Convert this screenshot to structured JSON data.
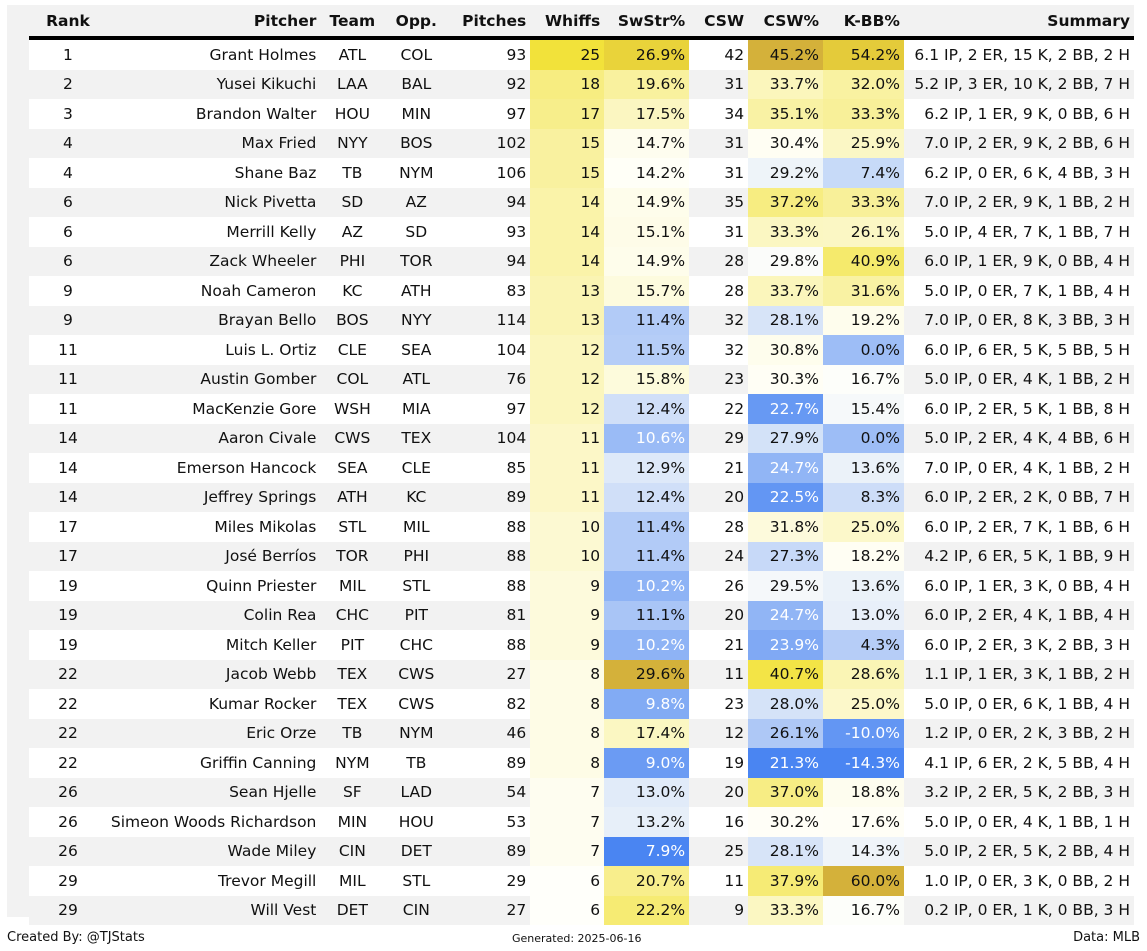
{
  "columns": [
    "Rank",
    "Pitcher",
    "Team",
    "Opp.",
    "Pitches",
    "Whiffs",
    "SwStr%",
    "CSW",
    "CSW%",
    "K-BB%",
    "Summary"
  ],
  "rows": [
    {
      "rank": "1",
      "pitcher": "Grant Holmes",
      "team": "ATL",
      "opp": "COL",
      "pitches": "93",
      "whiffs": "25",
      "swstr": "26.9%",
      "csw": "42",
      "cswp": "45.2%",
      "kbb": "54.2%",
      "summary": "6.1 IP, 2 ER, 15 K, 2 BB, 2 H"
    },
    {
      "rank": "2",
      "pitcher": "Yusei Kikuchi",
      "team": "LAA",
      "opp": "BAL",
      "pitches": "92",
      "whiffs": "18",
      "swstr": "19.6%",
      "csw": "31",
      "cswp": "33.7%",
      "kbb": "32.0%",
      "summary": "5.2 IP, 3 ER, 10 K, 2 BB, 7 H"
    },
    {
      "rank": "3",
      "pitcher": "Brandon Walter",
      "team": "HOU",
      "opp": "MIN",
      "pitches": "97",
      "whiffs": "17",
      "swstr": "17.5%",
      "csw": "34",
      "cswp": "35.1%",
      "kbb": "33.3%",
      "summary": "6.2 IP, 1 ER, 9 K, 0 BB, 6 H"
    },
    {
      "rank": "4",
      "pitcher": "Max Fried",
      "team": "NYY",
      "opp": "BOS",
      "pitches": "102",
      "whiffs": "15",
      "swstr": "14.7%",
      "csw": "31",
      "cswp": "30.4%",
      "kbb": "25.9%",
      "summary": "7.0 IP, 2 ER, 9 K, 2 BB, 6 H"
    },
    {
      "rank": "4",
      "pitcher": "Shane Baz",
      "team": "TB",
      "opp": "NYM",
      "pitches": "106",
      "whiffs": "15",
      "swstr": "14.2%",
      "csw": "31",
      "cswp": "29.2%",
      "kbb": "7.4%",
      "summary": "6.2 IP, 0 ER, 6 K, 4 BB, 3 H"
    },
    {
      "rank": "6",
      "pitcher": "Nick Pivetta",
      "team": "SD",
      "opp": "AZ",
      "pitches": "94",
      "whiffs": "14",
      "swstr": "14.9%",
      "csw": "35",
      "cswp": "37.2%",
      "kbb": "33.3%",
      "summary": "7.0 IP, 2 ER, 9 K, 1 BB, 2 H"
    },
    {
      "rank": "6",
      "pitcher": "Merrill Kelly",
      "team": "AZ",
      "opp": "SD",
      "pitches": "93",
      "whiffs": "14",
      "swstr": "15.1%",
      "csw": "31",
      "cswp": "33.3%",
      "kbb": "26.1%",
      "summary": "5.0 IP, 4 ER, 7 K, 1 BB, 7 H"
    },
    {
      "rank": "6",
      "pitcher": "Zack Wheeler",
      "team": "PHI",
      "opp": "TOR",
      "pitches": "94",
      "whiffs": "14",
      "swstr": "14.9%",
      "csw": "28",
      "cswp": "29.8%",
      "kbb": "40.9%",
      "summary": "6.0 IP, 1 ER, 9 K, 0 BB, 4 H"
    },
    {
      "rank": "9",
      "pitcher": "Noah Cameron",
      "team": "KC",
      "opp": "ATH",
      "pitches": "83",
      "whiffs": "13",
      "swstr": "15.7%",
      "csw": "28",
      "cswp": "33.7%",
      "kbb": "31.6%",
      "summary": "5.0 IP, 0 ER, 7 K, 1 BB, 4 H"
    },
    {
      "rank": "9",
      "pitcher": "Brayan Bello",
      "team": "BOS",
      "opp": "NYY",
      "pitches": "114",
      "whiffs": "13",
      "swstr": "11.4%",
      "csw": "32",
      "cswp": "28.1%",
      "kbb": "19.2%",
      "summary": "7.0 IP, 0 ER, 8 K, 3 BB, 3 H"
    },
    {
      "rank": "11",
      "pitcher": "Luis L. Ortiz",
      "team": "CLE",
      "opp": "SEA",
      "pitches": "104",
      "whiffs": "12",
      "swstr": "11.5%",
      "csw": "32",
      "cswp": "30.8%",
      "kbb": "0.0%",
      "summary": "6.0 IP, 6 ER, 5 K, 5 BB, 5 H"
    },
    {
      "rank": "11",
      "pitcher": "Austin Gomber",
      "team": "COL",
      "opp": "ATL",
      "pitches": "76",
      "whiffs": "12",
      "swstr": "15.8%",
      "csw": "23",
      "cswp": "30.3%",
      "kbb": "16.7%",
      "summary": "5.0 IP, 0 ER, 4 K, 1 BB, 2 H"
    },
    {
      "rank": "11",
      "pitcher": "MacKenzie Gore",
      "team": "WSH",
      "opp": "MIA",
      "pitches": "97",
      "whiffs": "12",
      "swstr": "12.4%",
      "csw": "22",
      "cswp": "22.7%",
      "kbb": "15.4%",
      "summary": "6.0 IP, 2 ER, 5 K, 1 BB, 8 H"
    },
    {
      "rank": "14",
      "pitcher": "Aaron Civale",
      "team": "CWS",
      "opp": "TEX",
      "pitches": "104",
      "whiffs": "11",
      "swstr": "10.6%",
      "csw": "29",
      "cswp": "27.9%",
      "kbb": "0.0%",
      "summary": "5.0 IP, 2 ER, 4 K, 4 BB, 6 H"
    },
    {
      "rank": "14",
      "pitcher": "Emerson Hancock",
      "team": "SEA",
      "opp": "CLE",
      "pitches": "85",
      "whiffs": "11",
      "swstr": "12.9%",
      "csw": "21",
      "cswp": "24.7%",
      "kbb": "13.6%",
      "summary": "7.0 IP, 0 ER, 4 K, 1 BB, 2 H"
    },
    {
      "rank": "14",
      "pitcher": "Jeffrey Springs",
      "team": "ATH",
      "opp": "KC",
      "pitches": "89",
      "whiffs": "11",
      "swstr": "12.4%",
      "csw": "20",
      "cswp": "22.5%",
      "kbb": "8.3%",
      "summary": "6.0 IP, 2 ER, 2 K, 0 BB, 7 H"
    },
    {
      "rank": "17",
      "pitcher": "Miles Mikolas",
      "team": "STL",
      "opp": "MIL",
      "pitches": "88",
      "whiffs": "10",
      "swstr": "11.4%",
      "csw": "28",
      "cswp": "31.8%",
      "kbb": "25.0%",
      "summary": "6.0 IP, 2 ER, 7 K, 1 BB, 6 H"
    },
    {
      "rank": "17",
      "pitcher": "José Berríos",
      "team": "TOR",
      "opp": "PHI",
      "pitches": "88",
      "whiffs": "10",
      "swstr": "11.4%",
      "csw": "24",
      "cswp": "27.3%",
      "kbb": "18.2%",
      "summary": "4.2 IP, 6 ER, 5 K, 1 BB, 9 H"
    },
    {
      "rank": "19",
      "pitcher": "Quinn Priester",
      "team": "MIL",
      "opp": "STL",
      "pitches": "88",
      "whiffs": "9",
      "swstr": "10.2%",
      "csw": "26",
      "cswp": "29.5%",
      "kbb": "13.6%",
      "summary": "6.0 IP, 1 ER, 3 K, 0 BB, 4 H"
    },
    {
      "rank": "19",
      "pitcher": "Colin Rea",
      "team": "CHC",
      "opp": "PIT",
      "pitches": "81",
      "whiffs": "9",
      "swstr": "11.1%",
      "csw": "20",
      "cswp": "24.7%",
      "kbb": "13.0%",
      "summary": "6.0 IP, 2 ER, 4 K, 1 BB, 4 H"
    },
    {
      "rank": "19",
      "pitcher": "Mitch Keller",
      "team": "PIT",
      "opp": "CHC",
      "pitches": "88",
      "whiffs": "9",
      "swstr": "10.2%",
      "csw": "21",
      "cswp": "23.9%",
      "kbb": "4.3%",
      "summary": "6.0 IP, 2 ER, 3 K, 2 BB, 3 H"
    },
    {
      "rank": "22",
      "pitcher": "Jacob Webb",
      "team": "TEX",
      "opp": "CWS",
      "pitches": "27",
      "whiffs": "8",
      "swstr": "29.6%",
      "csw": "11",
      "cswp": "40.7%",
      "kbb": "28.6%",
      "summary": "1.1 IP, 1 ER, 3 K, 1 BB, 2 H"
    },
    {
      "rank": "22",
      "pitcher": "Kumar Rocker",
      "team": "TEX",
      "opp": "CWS",
      "pitches": "82",
      "whiffs": "8",
      "swstr": "9.8%",
      "csw": "23",
      "cswp": "28.0%",
      "kbb": "25.0%",
      "summary": "5.0 IP, 0 ER, 6 K, 1 BB, 4 H"
    },
    {
      "rank": "22",
      "pitcher": "Eric Orze",
      "team": "TB",
      "opp": "NYM",
      "pitches": "46",
      "whiffs": "8",
      "swstr": "17.4%",
      "csw": "12",
      "cswp": "26.1%",
      "kbb": "-10.0%",
      "summary": "1.2 IP, 0 ER, 2 K, 3 BB, 2 H"
    },
    {
      "rank": "22",
      "pitcher": "Griffin Canning",
      "team": "NYM",
      "opp": "TB",
      "pitches": "89",
      "whiffs": "8",
      "swstr": "9.0%",
      "csw": "19",
      "cswp": "21.3%",
      "kbb": "-14.3%",
      "summary": "4.1 IP, 6 ER, 2 K, 5 BB, 4 H"
    },
    {
      "rank": "26",
      "pitcher": "Sean Hjelle",
      "team": "SF",
      "opp": "LAD",
      "pitches": "54",
      "whiffs": "7",
      "swstr": "13.0%",
      "csw": "20",
      "cswp": "37.0%",
      "kbb": "18.8%",
      "summary": "3.2 IP, 2 ER, 5 K, 2 BB, 3 H"
    },
    {
      "rank": "26",
      "pitcher": "Simeon Woods Richardson",
      "team": "MIN",
      "opp": "HOU",
      "pitches": "53",
      "whiffs": "7",
      "swstr": "13.2%",
      "csw": "16",
      "cswp": "30.2%",
      "kbb": "17.6%",
      "summary": "5.0 IP, 0 ER, 4 K, 1 BB, 1 H"
    },
    {
      "rank": "26",
      "pitcher": "Wade Miley",
      "team": "CIN",
      "opp": "DET",
      "pitches": "89",
      "whiffs": "7",
      "swstr": "7.9%",
      "csw": "25",
      "cswp": "28.1%",
      "kbb": "14.3%",
      "summary": "5.0 IP, 2 ER, 5 K, 2 BB, 4 H"
    },
    {
      "rank": "29",
      "pitcher": "Trevor Megill",
      "team": "MIL",
      "opp": "STL",
      "pitches": "29",
      "whiffs": "6",
      "swstr": "20.7%",
      "csw": "11",
      "cswp": "37.9%",
      "kbb": "60.0%",
      "summary": "1.0 IP, 0 ER, 3 K, 0 BB, 2 H"
    },
    {
      "rank": "29",
      "pitcher": "Will Vest",
      "team": "DET",
      "opp": "CIN",
      "pitches": "27",
      "whiffs": "6",
      "swstr": "22.2%",
      "csw": "9",
      "cswp": "33.3%",
      "kbb": "16.7%",
      "summary": "0.2 IP, 0 ER, 1 K, 0 BB, 3 H"
    }
  ],
  "footer": {
    "left": "Created By: @TJStats",
    "middle": "Generated: 2025-06-16",
    "right": "Data: MLB"
  },
  "heat_colors": {
    "high": "#f2e23a",
    "top": "#d4b13a",
    "mid": "#fefde8",
    "low": "#4a85f2"
  }
}
